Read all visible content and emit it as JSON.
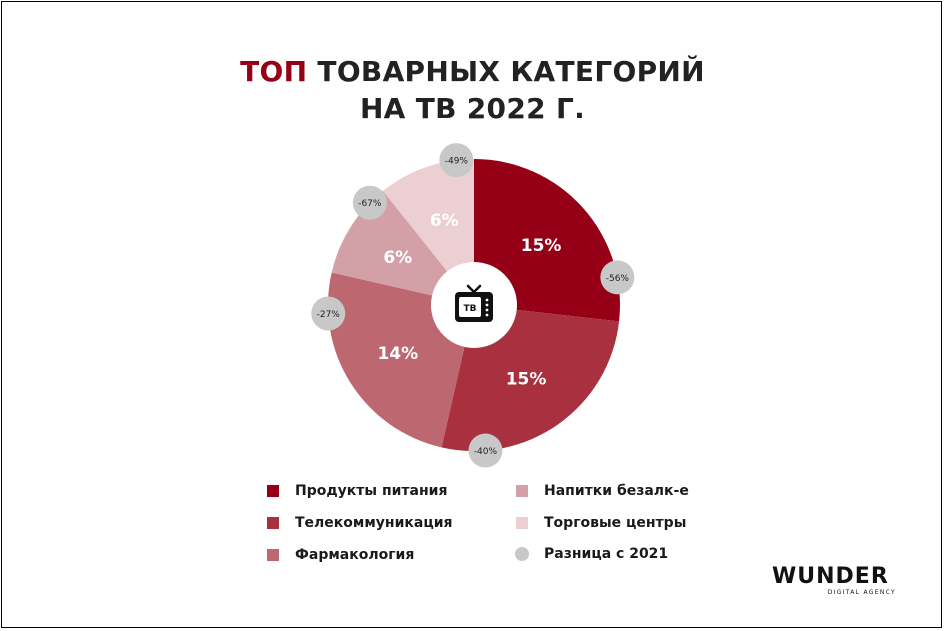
{
  "title": {
    "accent": "ТОП",
    "line1_rest": " ТОВАРНЫХ КАТЕГОРИЙ",
    "line2": "НА ТВ 2022 Г."
  },
  "center_icon": {
    "name": "tv-icon",
    "label": "ТВ"
  },
  "chart_data": {
    "type": "pie",
    "style": "donut",
    "title": "ТОП ТОВАРНЫХ КАТЕГОРИЙ НА ТВ 2022 Г.",
    "categories": [
      "Продукты питания",
      "Телекоммуникация",
      "Фармакология",
      "Напитки безалк-е",
      "Торговые центры"
    ],
    "values": [
      15,
      15,
      14,
      6,
      6
    ],
    "labels": [
      "15%",
      "15%",
      "14%",
      "6%",
      "6%"
    ],
    "change_vs_2021": [
      "-56%",
      "-40%",
      "-27%",
      "-67%",
      "-49%"
    ],
    "colors": [
      "#950016",
      "#a8303f",
      "#bd6771",
      "#d4a0a8",
      "#ebcfd2"
    ],
    "diff_color": "#c8c8c8",
    "legend_position": "bottom"
  },
  "legend": [
    {
      "label": "Продукты питания",
      "color": "#950016",
      "shape": "square"
    },
    {
      "label": "Телекоммуникация",
      "color": "#a8303f",
      "shape": "square"
    },
    {
      "label": "Фармакология",
      "color": "#bd6771",
      "shape": "square"
    },
    {
      "label": "Напитки безалк-е",
      "color": "#d4a0a8",
      "shape": "square"
    },
    {
      "label": "Торговые центры",
      "color": "#ebcfd2",
      "shape": "square"
    },
    {
      "label": "Разница с 2021",
      "color": "#c8c8c8",
      "shape": "circle"
    }
  ],
  "logo": {
    "main": "WUNDER",
    "sub": "DIGITAL AGENCY"
  }
}
